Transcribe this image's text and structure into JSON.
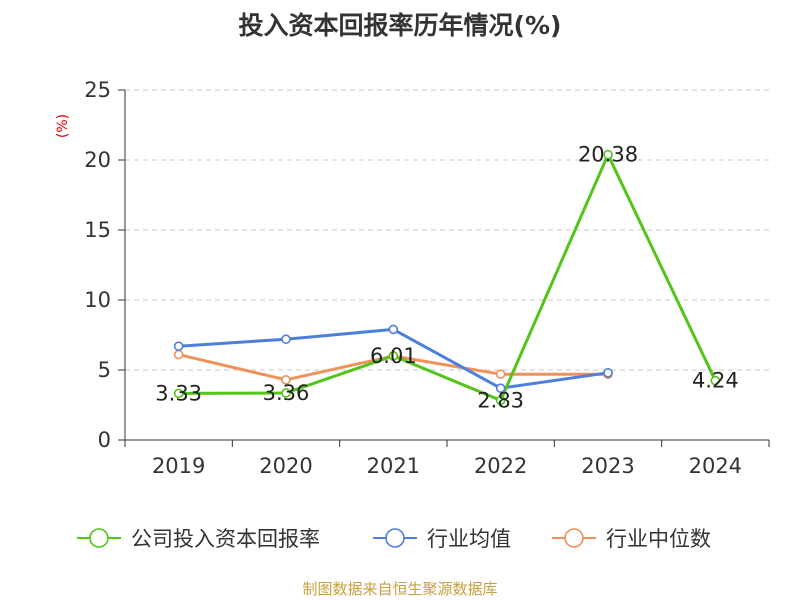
{
  "chart_data": {
    "type": "line",
    "title": "投入资本回报率历年情况(%)",
    "ylabel": "(%)",
    "xlabel": "",
    "categories": [
      "2019",
      "2020",
      "2021",
      "2022",
      "2023",
      "2024"
    ],
    "ylim": [
      0,
      25
    ],
    "yticks": [
      "0",
      "5",
      "10",
      "15",
      "20",
      "25"
    ],
    "grid": true,
    "legend_position": "bottom",
    "series": [
      {
        "name": "公司投入资本回报率",
        "color": "#52c41a",
        "values": [
          3.33,
          3.36,
          6.01,
          2.83,
          20.38,
          4.24
        ],
        "labels": [
          "3.33",
          "3.36",
          "6.01",
          "2.83",
          "20.38",
          "4.24"
        ]
      },
      {
        "name": "行业均值",
        "color": "#4e7fdc",
        "values": [
          6.7,
          7.2,
          7.9,
          3.7,
          4.8,
          null
        ]
      },
      {
        "name": "行业中位数",
        "color": "#f0915a",
        "values": [
          6.1,
          4.3,
          6.0,
          4.7,
          4.7,
          null
        ]
      }
    ]
  },
  "footer": {
    "source": "制图数据来自恒生聚源数据库"
  }
}
